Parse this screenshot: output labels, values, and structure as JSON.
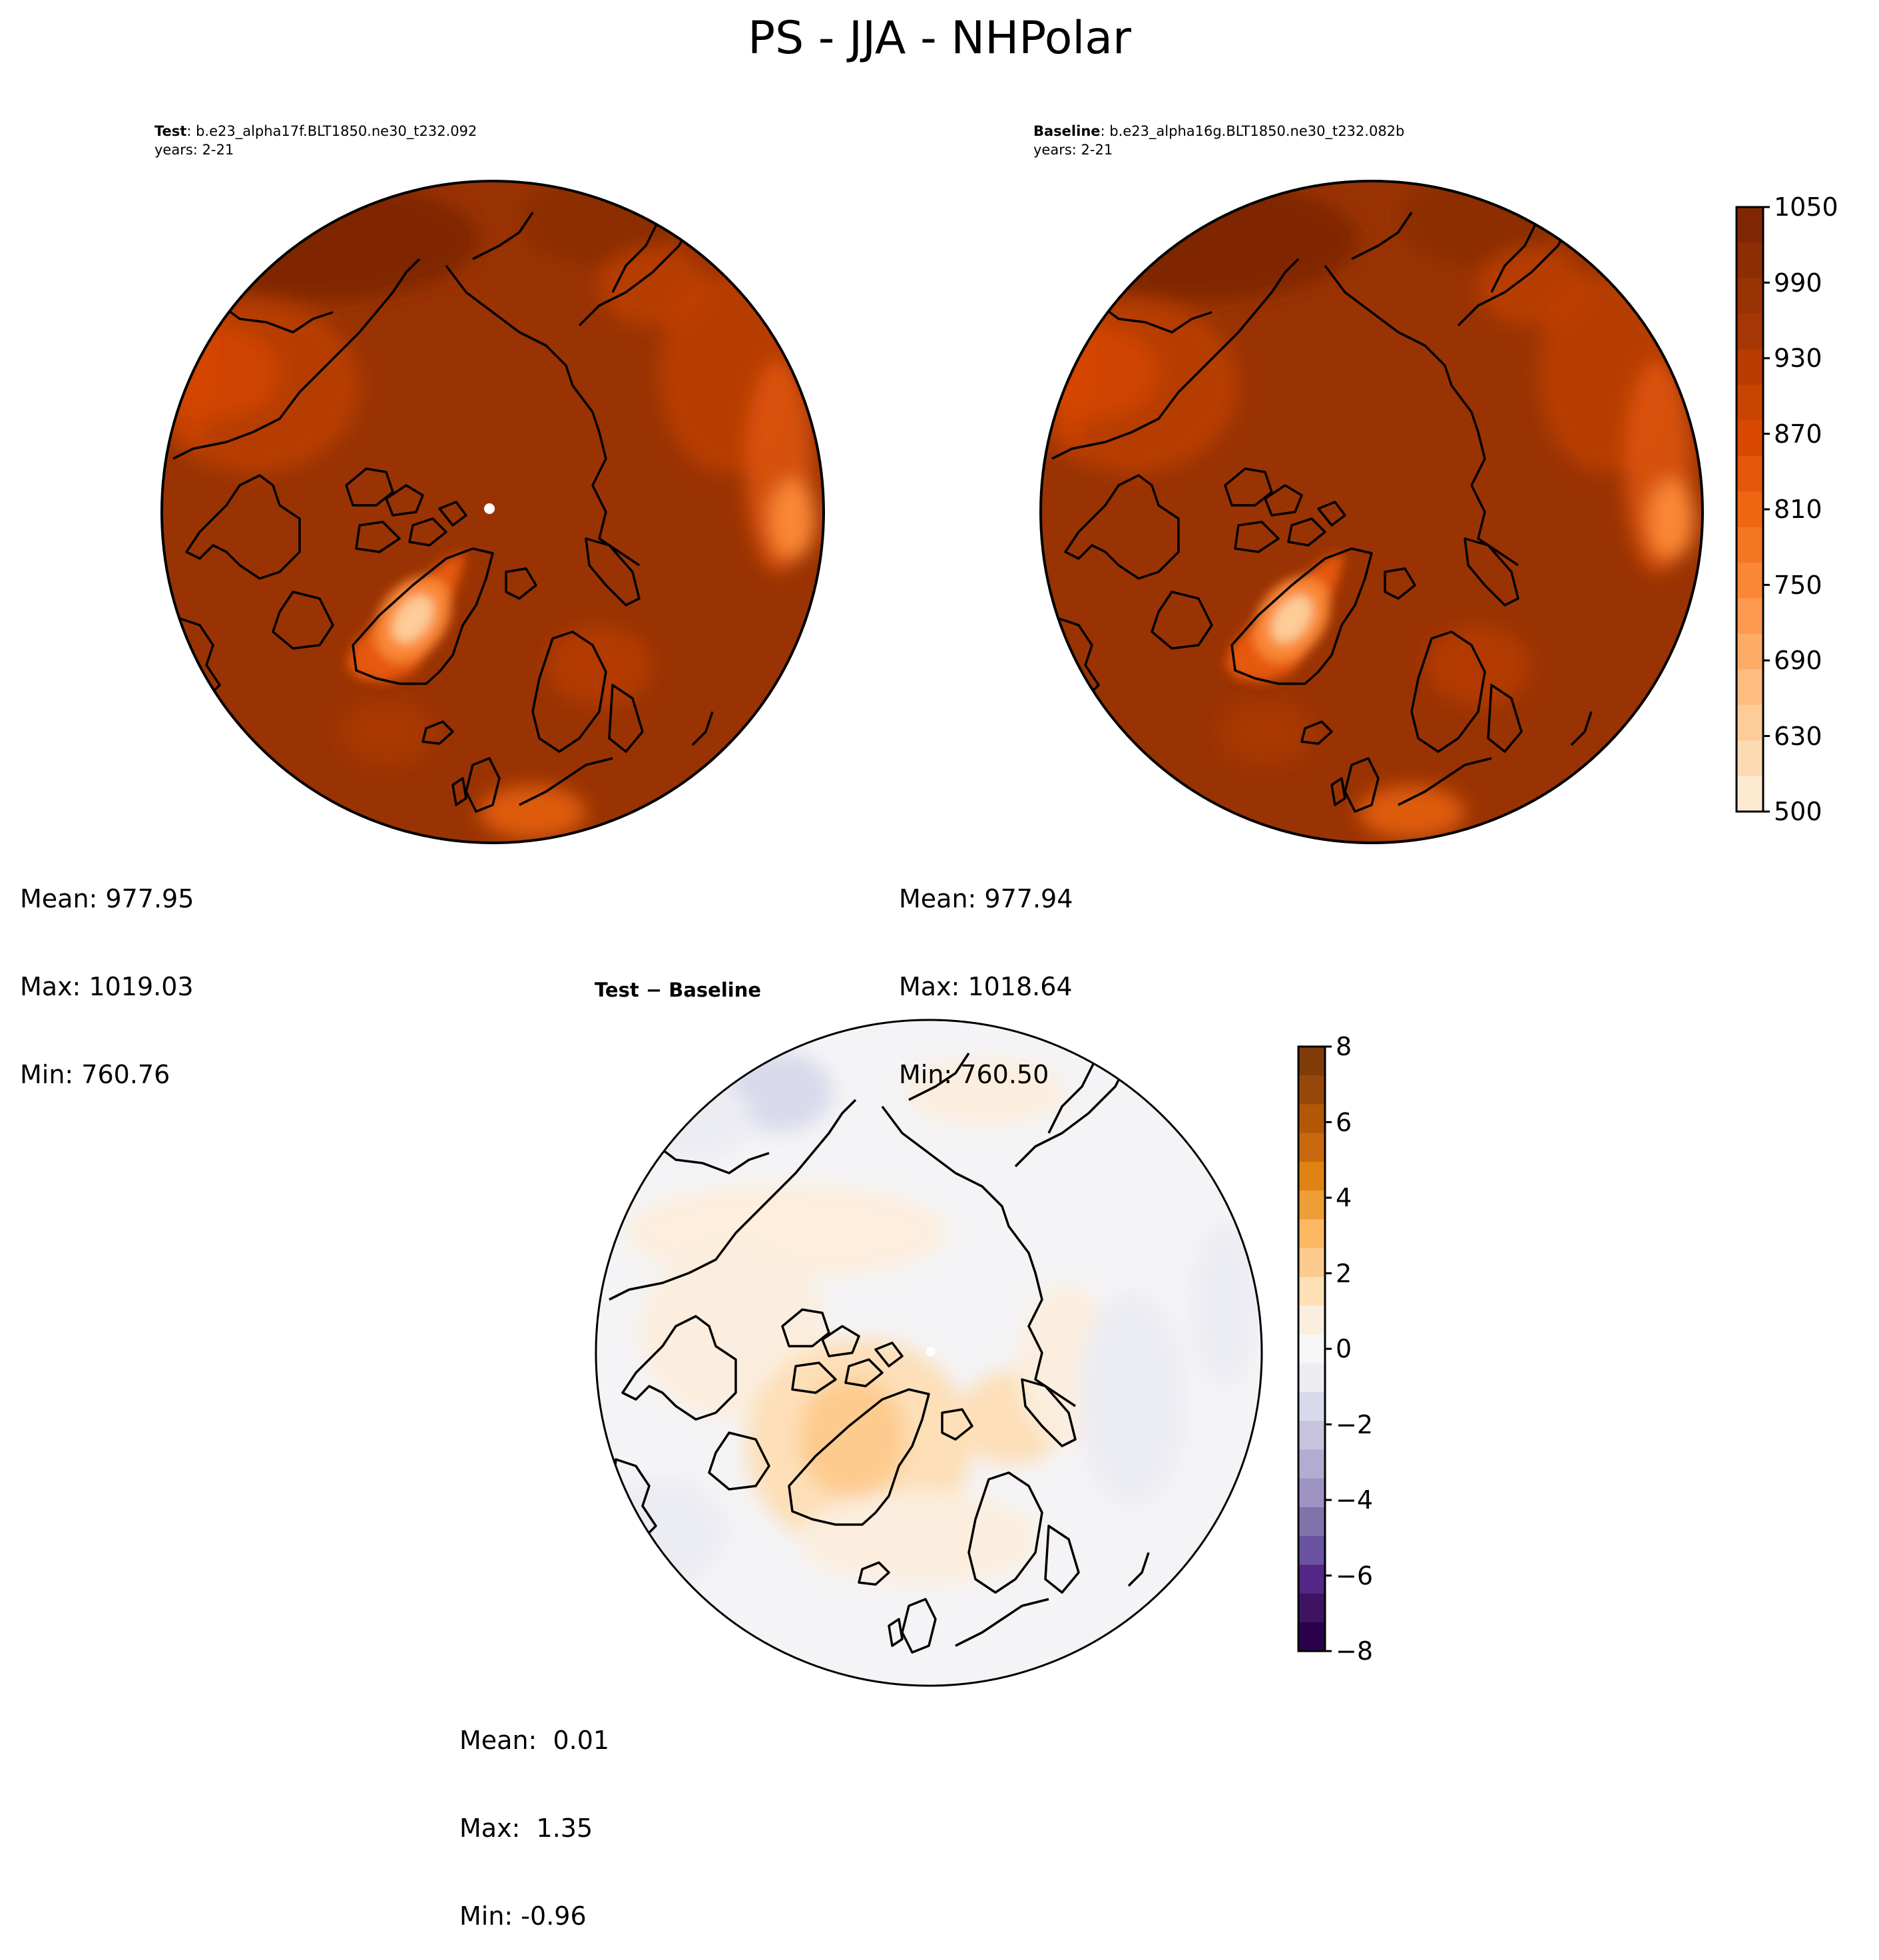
{
  "figure_title": "PS - JJA - NHPolar",
  "panels": [
    {
      "id": "test",
      "label": "Test",
      "case_name": ": b.e23_alpha17f.BLT1850.ne30_t232.092",
      "years": "years: 2-21",
      "stats": {
        "mean": "Mean: 977.95",
        "max": "Max: 1019.03",
        "min": "Min: 760.76"
      }
    },
    {
      "id": "baseline",
      "label": "Baseline",
      "case_name": ": b.e23_alpha16g.BLT1850.ne30_t232.082b",
      "years": "years: 2-21",
      "stats": {
        "mean": "Mean: 977.94",
        "max": "Max: 1018.64",
        "min": "Min: 760.50"
      }
    },
    {
      "id": "difference",
      "label": "Test − Baseline",
      "stats": {
        "mean": "Mean:  0.01",
        "max": "Max:  1.35",
        "min": "Min: -0.96"
      }
    }
  ],
  "colorbars": {
    "field": {
      "ticks": [
        "1050",
        "990",
        "930",
        "870",
        "810",
        "750",
        "690",
        "630",
        "500"
      ],
      "colors": [
        "#7f2704",
        "#8c2d04",
        "#9a3303",
        "#a63603",
        "#b83c02",
        "#c94301",
        "#d94801",
        "#e5580b",
        "#ef6612",
        "#f57622",
        "#f98735",
        "#fd9a4f",
        "#fdac67",
        "#fdbc80",
        "#fdcc98",
        "#fddbb2",
        "#fee9d1"
      ]
    },
    "difference": {
      "ticks": [
        "8",
        "6",
        "4",
        "2",
        "0",
        "−2",
        "−4",
        "−6",
        "−8"
      ],
      "colors": [
        "#7f3b08",
        "#96480a",
        "#b35806",
        "#c9690f",
        "#e08214",
        "#ee9e36",
        "#fdb863",
        "#fdcb8d",
        "#fee0b6",
        "#fbeede",
        "#f7f7f7",
        "#ececf3",
        "#d8daeb",
        "#c6c3df",
        "#b2abd2",
        "#9e93c3",
        "#8073ac",
        "#6a53a0",
        "#542788",
        "#3f1262",
        "#2d004b"
      ]
    }
  }
}
